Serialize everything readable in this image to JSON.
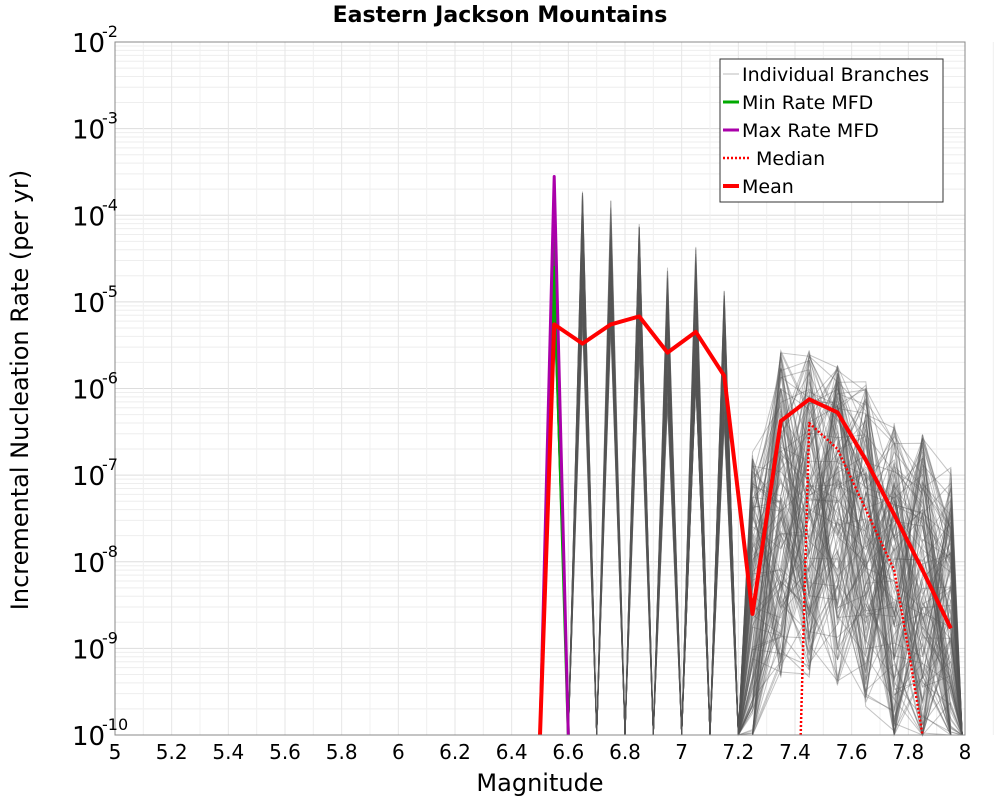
{
  "chart_data": {
    "type": "line",
    "title": "Eastern Jackson Mountains",
    "xlabel": "Magnitude",
    "ylabel": "Incremental Nucleation Rate (per yr)",
    "xlim": [
      5,
      8
    ],
    "ylim": [
      1e-10,
      0.01
    ],
    "yscale": "log",
    "grid": true,
    "legend_position": "top-right",
    "x_ticks": [
      "5",
      "5.2",
      "5.4",
      "5.6",
      "5.8",
      "6",
      "6.2",
      "6.4",
      "6.6",
      "6.8",
      "7",
      "7.2",
      "7.4",
      "7.6",
      "7.8",
      "8"
    ],
    "y_ticks": [
      {
        "base": "10",
        "exp": "-10"
      },
      {
        "base": "10",
        "exp": "-9"
      },
      {
        "base": "10",
        "exp": "-8"
      },
      {
        "base": "10",
        "exp": "-7"
      },
      {
        "base": "10",
        "exp": "-6"
      },
      {
        "base": "10",
        "exp": "-5"
      },
      {
        "base": "10",
        "exp": "-4"
      },
      {
        "base": "10",
        "exp": "-3"
      },
      {
        "base": "10",
        "exp": "-2"
      }
    ],
    "series": [
      {
        "name": "Individual Branches",
        "color": "#555555",
        "style": "thin",
        "description_points": {
          "envelope_upper": [
            [
              6.55,
              0.00028
            ],
            [
              6.65,
              0.0002
            ],
            [
              6.75,
              0.00019
            ],
            [
              6.85,
              0.0001
            ],
            [
              6.95,
              2.5e-05
            ],
            [
              7.05,
              4.5e-05
            ],
            [
              7.15,
              1.5e-05
            ],
            [
              7.25,
              4e-07
            ],
            [
              7.35,
              5.5e-06
            ],
            [
              7.45,
              5.5e-06
            ],
            [
              7.55,
              4.5e-06
            ],
            [
              7.65,
              2.5e-06
            ],
            [
              7.75,
              8e-07
            ],
            [
              7.85,
              6e-07
            ],
            [
              7.95,
              2.5e-07
            ]
          ]
        }
      },
      {
        "name": "Min Rate MFD",
        "color": "#00aa00",
        "x": [
          6.5,
          6.55,
          6.6
        ],
        "y": [
          1e-10,
          2.5e-05,
          1e-10
        ]
      },
      {
        "name": "Max Rate MFD",
        "color": "#aa00aa",
        "x": [
          6.5,
          6.55,
          6.6
        ],
        "y": [
          1e-10,
          0.00028,
          1e-10
        ]
      },
      {
        "name": "Median",
        "color": "#ff0000",
        "style": "dotted",
        "x": [
          7.42,
          7.45,
          7.55,
          7.65,
          7.75,
          7.8,
          7.85
        ],
        "y": [
          1e-10,
          4e-07,
          2e-07,
          4e-08,
          8e-09,
          1e-09,
          1e-10
        ]
      },
      {
        "name": "Mean",
        "color": "#ff0000",
        "style": "thick",
        "x": [
          6.5,
          6.55,
          6.65,
          6.75,
          6.85,
          6.95,
          7.05,
          7.15,
          7.25,
          7.35,
          7.45,
          7.55,
          7.65,
          7.75,
          7.85,
          7.95
        ],
        "y": [
          1e-10,
          5.5e-06,
          3.3e-06,
          5.5e-06,
          6.8e-06,
          2.6e-06,
          4.5e-06,
          1.4e-06,
          2.5e-09,
          4.2e-07,
          7.5e-07,
          5.3e-07,
          1.5e-07,
          3.5e-08,
          8e-09,
          1.7e-09
        ]
      }
    ]
  }
}
